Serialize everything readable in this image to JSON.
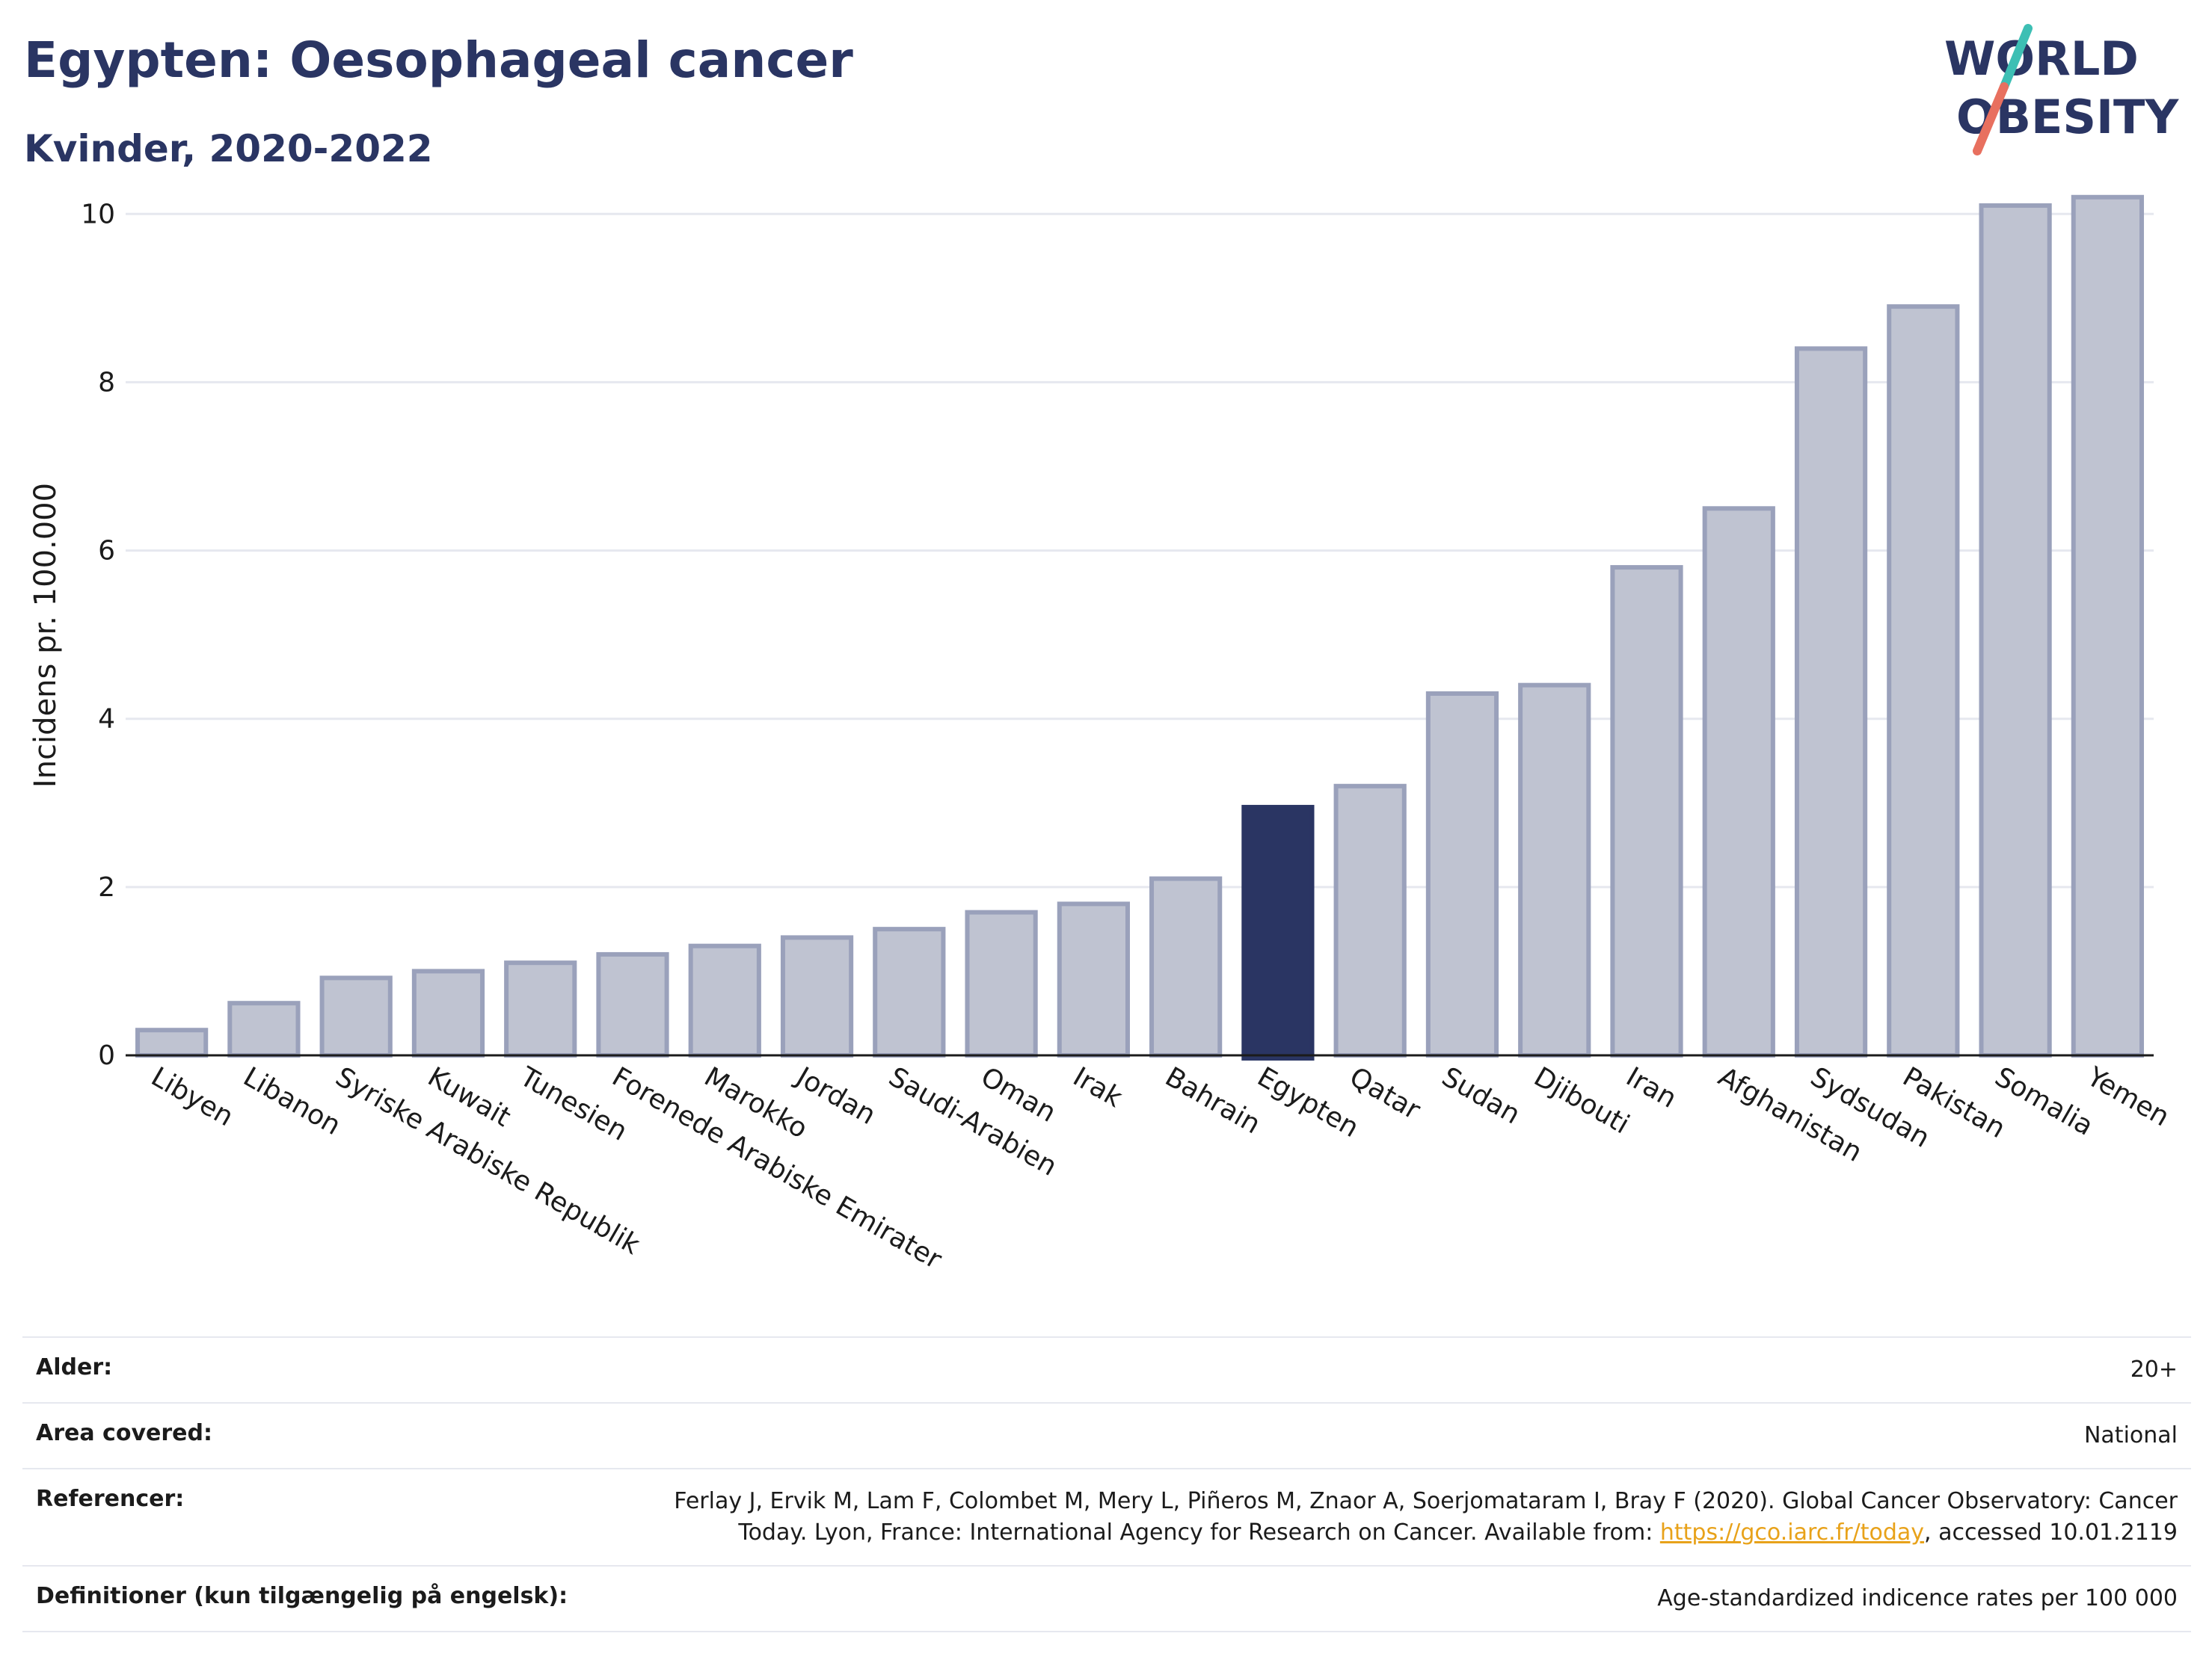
{
  "header": {
    "title": "Egypten: Oesophageal cancer",
    "subtitle": "Kvinder, 2020-2022"
  },
  "logo": {
    "line1": "WORLD",
    "line2": "OBESITY",
    "colors": {
      "text": "#2a3563",
      "slash_top": "#3dbfb4",
      "slash_bottom": "#e8705f"
    }
  },
  "colors": {
    "bar_fill": "#bfc3d1",
    "bar_stroke": "#9aa1bb",
    "highlight": "#2a3563",
    "grid": "#e6e8ef",
    "axis": "#1b1b1b"
  },
  "chart_data": {
    "type": "bar",
    "title": "",
    "xlabel": "",
    "ylabel": "Incidens pr. 100.000",
    "ylim": [
      0,
      10.5
    ],
    "yticks": [
      0,
      2,
      4,
      6,
      8,
      10
    ],
    "grid": true,
    "highlight_category": "Egypten",
    "categories": [
      "Libyen",
      "Libanon",
      "Syriske Arabiske Republik",
      "Kuwait",
      "Tunesien",
      "Forenede Arabiske Emirater",
      "Marokko",
      "Jordan",
      "Saudi-Arabien",
      "Oman",
      "Irak",
      "Bahrain",
      "Egypten",
      "Qatar",
      "Sudan",
      "Djibouti",
      "Iran",
      "Afghanistan",
      "Sydsudan",
      "Pakistan",
      "Somalia",
      "Yemen"
    ],
    "values": [
      0.3,
      0.62,
      0.92,
      1.0,
      1.1,
      1.2,
      1.3,
      1.4,
      1.5,
      1.7,
      1.8,
      2.1,
      2.95,
      3.2,
      4.3,
      4.4,
      5.8,
      6.5,
      8.4,
      8.9,
      10.1,
      10.2
    ]
  },
  "meta": [
    {
      "key": "Alder:",
      "value": "20+"
    },
    {
      "key": "Area covered:",
      "value": "National"
    },
    {
      "key": "Referencer:",
      "value_pre": "Ferlay J, Ervik M, Lam F, Colombet M, Mery L, Piñeros M, Znaor A, Soerjomataram I, Bray F (2020). Global Cancer Observatory: Cancer Today. Lyon, France: International Agency for Research on Cancer. Available from: ",
      "link": "https://gco.iarc.fr/today",
      "value_post": ", accessed 10.01.2119"
    },
    {
      "key": "Definitioner (kun tilgængelig på engelsk):",
      "value": "Age-standardized indicence rates per 100 000"
    }
  ]
}
